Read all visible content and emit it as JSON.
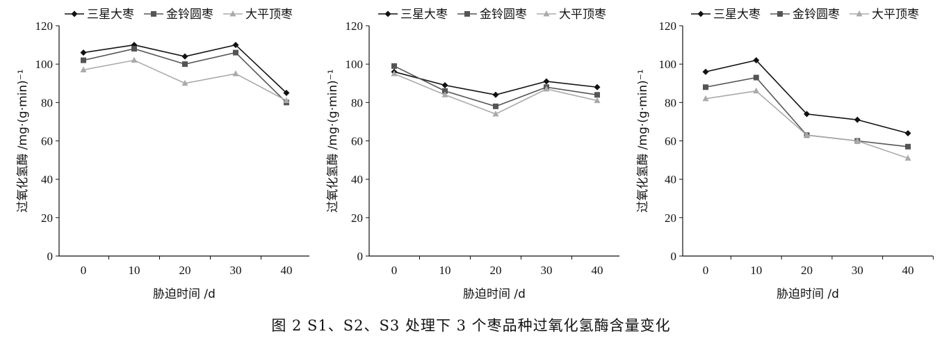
{
  "caption": "图 2   S1、S2、S3 处理下 3 个枣品种过氧化氢酶含量变化",
  "colors": {
    "三星大枣": "#111111",
    "金铃圆枣": "#555555",
    "大平顶枣": "#aaaaaa"
  },
  "markers": {
    "三星大枣": "diamond",
    "金铃圆枣": "square",
    "大平顶枣": "triangle"
  },
  "chart_data": [
    {
      "type": "line",
      "xlabel": "胁迫时间 /d",
      "ylabel": "过氧化氢酶 /mg·(g·min)⁻¹",
      "x": [
        0,
        10,
        20,
        30,
        40
      ],
      "ylim": [
        0,
        120
      ],
      "yticks": [
        0,
        20,
        40,
        60,
        80,
        100,
        120
      ],
      "legend_position": "top",
      "grid": false,
      "series": [
        {
          "name": "三星大枣",
          "values": [
            106,
            110,
            104,
            110,
            85
          ]
        },
        {
          "name": "金铃圆枣",
          "values": [
            102,
            108,
            100,
            106,
            80
          ]
        },
        {
          "name": "大平顶枣",
          "values": [
            97,
            102,
            90,
            95,
            81
          ]
        }
      ]
    },
    {
      "type": "line",
      "xlabel": "胁迫时间 /d",
      "ylabel": "过氧化氢酶 /mg·(g·min)⁻¹",
      "x": [
        0,
        10,
        20,
        30,
        40
      ],
      "ylim": [
        0,
        120
      ],
      "yticks": [
        0,
        20,
        40,
        60,
        80,
        100,
        120
      ],
      "legend_position": "top",
      "grid": false,
      "series": [
        {
          "name": "三星大枣",
          "values": [
            96,
            89,
            84,
            91,
            88
          ]
        },
        {
          "name": "金铃圆枣",
          "values": [
            99,
            86,
            78,
            88,
            84
          ]
        },
        {
          "name": "大平顶枣",
          "values": [
            95,
            84,
            74,
            87,
            81
          ]
        }
      ]
    },
    {
      "type": "line",
      "xlabel": "胁迫时间 /d",
      "ylabel": "过氧化氢酶 /mg·(g·min)⁻¹",
      "x": [
        0,
        10,
        20,
        30,
        40
      ],
      "ylim": [
        0,
        120
      ],
      "yticks": [
        0,
        20,
        40,
        60,
        80,
        100,
        120
      ],
      "legend_position": "top",
      "grid": false,
      "series": [
        {
          "name": "三星大枣",
          "values": [
            96,
            102,
            74,
            71,
            64
          ]
        },
        {
          "name": "金铃圆枣",
          "values": [
            88,
            93,
            63,
            60,
            57
          ]
        },
        {
          "name": "大平顶枣",
          "values": [
            82,
            86,
            63,
            60,
            51
          ]
        }
      ]
    }
  ]
}
